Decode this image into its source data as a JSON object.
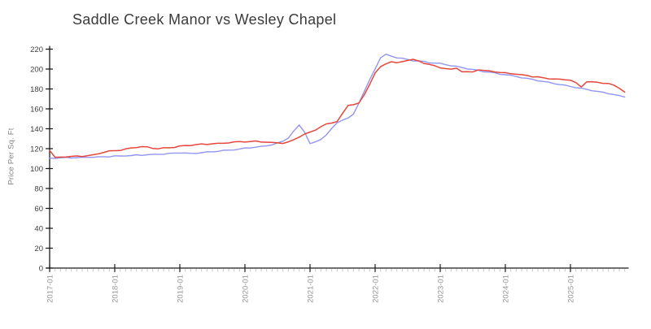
{
  "page": {
    "background": "#ffffff"
  },
  "chart": {
    "title": "Saddle Creek Manor vs Wesley Chapel",
    "y_axis_label": "Price Per Sq. Ft"
  },
  "chart_data": {
    "type": "line",
    "title": "Saddle Creek Manor vs Wesley Chapel",
    "xlabel": "",
    "ylabel": "Price Per Sq. Ft",
    "ylim": [
      0,
      220
    ],
    "xlim": [
      "2017-01",
      "2025-11"
    ],
    "grid": false,
    "legend": "none",
    "style": "xkcd-handdrawn",
    "y_ticks": [
      0,
      20,
      40,
      60,
      80,
      100,
      120,
      140,
      160,
      180,
      200,
      220
    ],
    "x_tick_labels": [
      "2017-01",
      "2018-01",
      "2019-01",
      "2020-01",
      "2021-01",
      "2022-01",
      "2023-01",
      "2024-01",
      "2025-01"
    ],
    "x_minor_ticks": "monthly",
    "x": [
      "2017-01",
      "2017-02",
      "2017-03",
      "2017-04",
      "2017-05",
      "2017-06",
      "2017-07",
      "2017-08",
      "2017-09",
      "2017-10",
      "2017-11",
      "2017-12",
      "2018-01",
      "2018-02",
      "2018-03",
      "2018-04",
      "2018-05",
      "2018-06",
      "2018-07",
      "2018-08",
      "2018-09",
      "2018-10",
      "2018-11",
      "2018-12",
      "2019-01",
      "2019-02",
      "2019-03",
      "2019-04",
      "2019-05",
      "2019-06",
      "2019-07",
      "2019-08",
      "2019-09",
      "2019-10",
      "2019-11",
      "2019-12",
      "2020-01",
      "2020-02",
      "2020-03",
      "2020-04",
      "2020-05",
      "2020-06",
      "2020-07",
      "2020-08",
      "2020-09",
      "2020-10",
      "2020-11",
      "2020-12",
      "2021-01",
      "2021-02",
      "2021-03",
      "2021-04",
      "2021-05",
      "2021-06",
      "2021-07",
      "2021-08",
      "2021-09",
      "2021-10",
      "2021-11",
      "2021-12",
      "2022-01",
      "2022-02",
      "2022-03",
      "2022-04",
      "2022-05",
      "2022-06",
      "2022-07",
      "2022-08",
      "2022-09",
      "2022-10",
      "2022-11",
      "2022-12",
      "2023-01",
      "2023-02",
      "2023-03",
      "2023-04",
      "2023-05",
      "2023-06",
      "2023-07",
      "2023-08",
      "2023-09",
      "2023-10",
      "2023-11",
      "2023-12",
      "2024-01",
      "2024-02",
      "2024-03",
      "2024-04",
      "2024-05",
      "2024-06",
      "2024-07",
      "2024-08",
      "2024-09",
      "2024-10",
      "2024-11",
      "2024-12",
      "2025-01",
      "2025-02",
      "2025-03",
      "2025-04",
      "2025-05",
      "2025-06",
      "2025-07",
      "2025-08",
      "2025-09",
      "2025-10",
      "2025-11"
    ],
    "series": [
      {
        "name": "Saddle Creek Manor",
        "color": "#9196f0",
        "values": [
          110.5,
          110.5,
          110.5,
          111,
          111,
          111,
          111,
          111.5,
          111.5,
          111.5,
          112,
          112,
          112.5,
          112.5,
          113,
          113,
          113.5,
          113.5,
          114,
          114,
          114.5,
          114.5,
          115,
          115.5,
          116,
          115.5,
          115,
          115.5,
          116,
          116.5,
          117,
          117.5,
          118,
          118.5,
          119,
          119.5,
          120.5,
          121,
          121.5,
          122,
          123,
          124,
          125.5,
          127.5,
          131,
          137.5,
          143.5,
          137,
          125,
          126.5,
          129.5,
          134,
          140,
          146,
          149,
          150.5,
          154.5,
          166,
          177.5,
          189,
          200.5,
          211.5,
          214.5,
          213,
          211.5,
          210.5,
          209.5,
          208.5,
          208,
          207.5,
          206.5,
          206,
          205.5,
          204.5,
          203.5,
          202.5,
          201.5,
          200.5,
          199.5,
          198.5,
          197.5,
          197,
          196,
          195,
          194.5,
          193.5,
          192.5,
          191.5,
          190.5,
          189.5,
          188.5,
          187.5,
          186.5,
          185.5,
          184.5,
          183.5,
          182.5,
          181.5,
          180.5,
          179.5,
          178.5,
          177.5,
          176.5,
          175.5,
          174.5,
          173,
          172
        ]
      },
      {
        "name": "Wesley Chapel",
        "color": "#e6473c",
        "values": [
          118.5,
          111,
          111.5,
          112,
          112,
          112.5,
          112.5,
          113,
          113.5,
          115,
          116.5,
          117.5,
          118,
          118.5,
          119.5,
          120.5,
          121.5,
          122,
          121.5,
          120.5,
          120,
          120.5,
          121,
          121.5,
          122.5,
          123,
          123.5,
          124,
          124.5,
          124.5,
          125,
          125,
          125.5,
          126,
          126.5,
          127,
          127,
          127,
          127.5,
          127,
          126.5,
          126,
          126,
          125.5,
          126.5,
          129,
          132,
          134.5,
          136.5,
          139,
          142,
          144.5,
          146,
          147.5,
          155,
          163.5,
          164.5,
          165.5,
          174,
          185,
          196,
          202,
          205.5,
          207.5,
          206,
          207.5,
          209,
          209.5,
          208,
          206,
          204.5,
          203,
          201.5,
          200.5,
          199.5,
          201,
          197.5,
          197,
          197,
          199.5,
          198.5,
          198,
          197.5,
          196.5,
          196,
          195.5,
          195,
          194,
          193.5,
          192.5,
          192,
          191,
          190.5,
          190,
          189.5,
          189.5,
          189,
          186,
          182,
          187.5,
          187,
          186.5,
          186,
          185.5,
          183.5,
          181,
          177
        ]
      }
    ],
    "colors": {
      "axis": "#1a1a1a",
      "minor_tick": "#c9c9c9",
      "x_label": "#979797",
      "y_label": "#3d3d3d"
    }
  }
}
